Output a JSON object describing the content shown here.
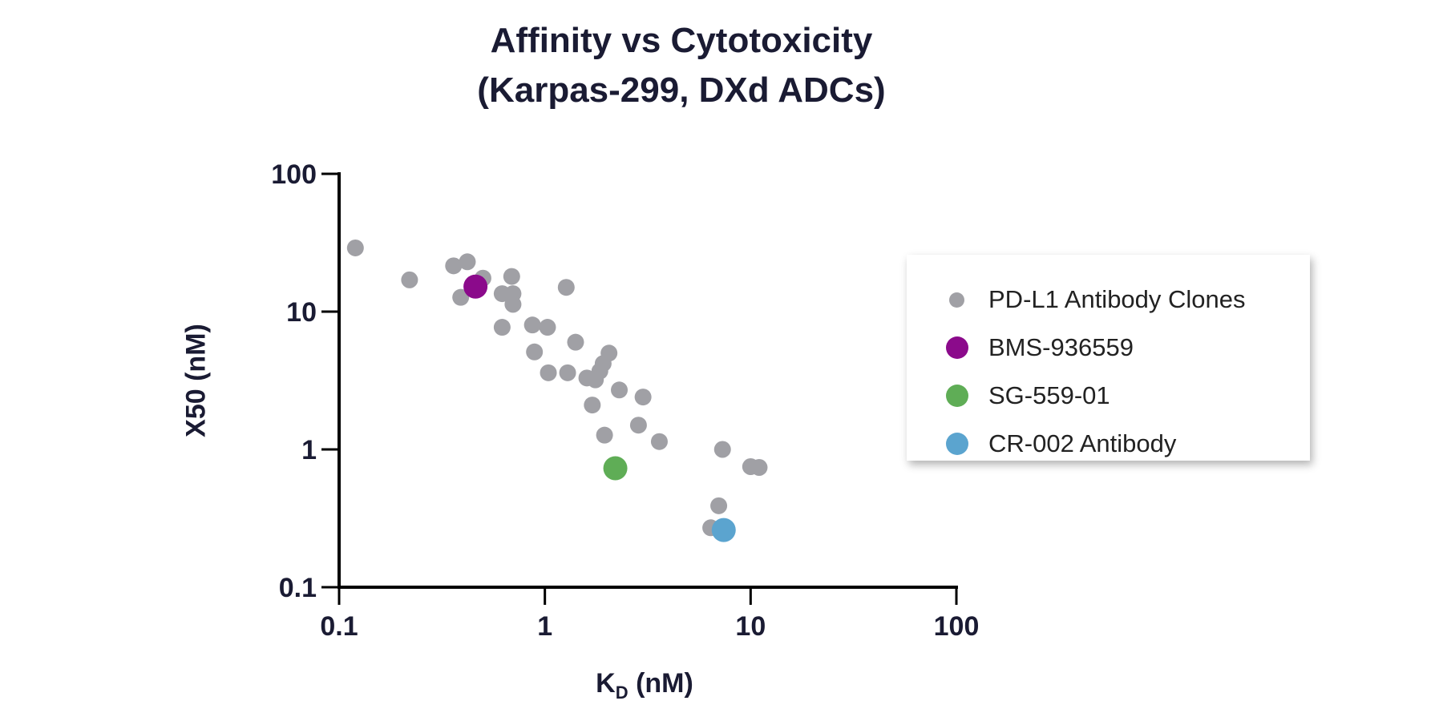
{
  "chart_data": {
    "type": "scatter",
    "title": [
      "Affinity vs Cytotoxicity",
      "(Karpas-299, DXd ADCs)"
    ],
    "xlabel": {
      "main": "K",
      "subscript": "D",
      "suffix": " (nM)"
    },
    "ylabel": "X50 (nM)",
    "xscale": "log",
    "yscale": "log",
    "xlim": [
      0.1,
      100
    ],
    "ylim": [
      0.1,
      100
    ],
    "xticks": [
      "0.1",
      "1",
      "10",
      "100"
    ],
    "yticks": [
      "0.1",
      "1",
      "10",
      "100"
    ],
    "grid": false,
    "legend_position": "right",
    "series": [
      {
        "name": "PD-L1 Antibody Clones",
        "color": "#a0a0a5",
        "points": [
          [
            0.12,
            29
          ],
          [
            0.22,
            17
          ],
          [
            0.36,
            21.5
          ],
          [
            0.42,
            23
          ],
          [
            0.5,
            17.5
          ],
          [
            0.39,
            12.7
          ],
          [
            0.69,
            18
          ],
          [
            0.62,
            13.5
          ],
          [
            0.7,
            13.5
          ],
          [
            0.7,
            11.3
          ],
          [
            1.27,
            15
          ],
          [
            0.62,
            7.7
          ],
          [
            0.87,
            8
          ],
          [
            1.03,
            7.7
          ],
          [
            0.89,
            5.1
          ],
          [
            1.04,
            3.6
          ],
          [
            1.29,
            3.6
          ],
          [
            1.41,
            6.0
          ],
          [
            2.05,
            5.0
          ],
          [
            1.92,
            4.2
          ],
          [
            1.85,
            3.7
          ],
          [
            1.6,
            3.3
          ],
          [
            1.76,
            3.2
          ],
          [
            1.7,
            2.1
          ],
          [
            2.3,
            2.7
          ],
          [
            3.0,
            2.4
          ],
          [
            1.95,
            1.27
          ],
          [
            2.85,
            1.5
          ],
          [
            3.6,
            1.14
          ],
          [
            7.3,
            1.0
          ],
          [
            10,
            0.75
          ],
          [
            11,
            0.74
          ],
          [
            7.0,
            0.39
          ],
          [
            6.4,
            0.27
          ]
        ]
      },
      {
        "name": "BMS-936559",
        "color": "#8b0a8b",
        "points": [
          [
            0.46,
            15.2
          ]
        ]
      },
      {
        "name": "SG-559-01",
        "color": "#5fad56",
        "points": [
          [
            2.2,
            0.73
          ]
        ]
      },
      {
        "name": "CR-002 Antibody",
        "color": "#5ba4cf",
        "points": [
          [
            7.4,
            0.26
          ]
        ]
      }
    ]
  }
}
